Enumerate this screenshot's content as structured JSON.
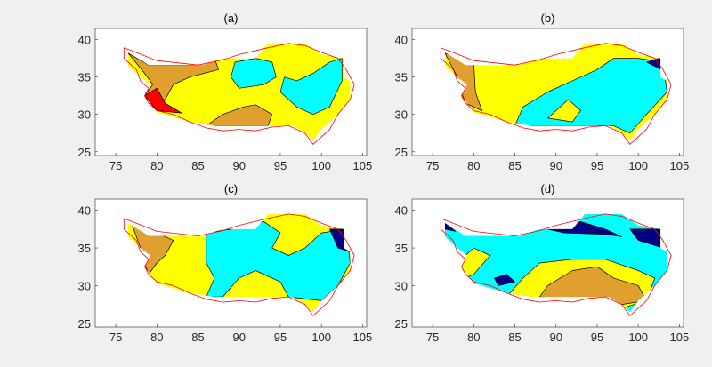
{
  "chart_data": [
    {
      "type": "contour-map",
      "title": "(a)",
      "xlim": [
        72.5,
        105.5
      ],
      "ylim": [
        24.5,
        41.5
      ],
      "xticks": [
        75,
        80,
        85,
        90,
        95,
        100,
        105
      ],
      "yticks": [
        25,
        30,
        35,
        40
      ],
      "base_color": "#ffff00",
      "regions": [
        {
          "color": "#e0a030",
          "points": [
            [
              76.5,
              38.2
            ],
            [
              79,
              36.6
            ],
            [
              85,
              36.6
            ],
            [
              87,
              37.5
            ],
            [
              87.5,
              36
            ],
            [
              84,
              35
            ],
            [
              82,
              34
            ],
            [
              81,
              32
            ],
            [
              80,
              30.5
            ],
            [
              78.5,
              32.5
            ],
            [
              79.5,
              34
            ],
            [
              78.5,
              35.5
            ]
          ]
        },
        {
          "color": "#e0a030",
          "points": [
            [
              86,
              28.5
            ],
            [
              88,
              30
            ],
            [
              90.5,
              31
            ],
            [
              92,
              31.3
            ],
            [
              94,
              30
            ],
            [
              93.5,
              28.5
            ]
          ]
        },
        {
          "color": "#ff0000",
          "points": [
            [
              78.5,
              32.5
            ],
            [
              80,
              33.5
            ],
            [
              81,
              31.5
            ],
            [
              83,
              30.2
            ],
            [
              80,
              30.5
            ]
          ]
        },
        {
          "color": "#00ffff",
          "points": [
            [
              89,
              35
            ],
            [
              89.5,
              37
            ],
            [
              92,
              37.5
            ],
            [
              94,
              37
            ],
            [
              94.5,
              35
            ],
            [
              93,
              34
            ],
            [
              90,
              33.5
            ]
          ]
        },
        {
          "color": "#00ffff",
          "points": [
            [
              95.5,
              35
            ],
            [
              97,
              34.5
            ],
            [
              99,
              35.5
            ],
            [
              101,
              37
            ],
            [
              102.5,
              37.5
            ],
            [
              102.5,
              34.5
            ],
            [
              101,
              31
            ],
            [
              99,
              30
            ],
            [
              97,
              31
            ],
            [
              95,
              33
            ]
          ]
        }
      ]
    },
    {
      "type": "contour-map",
      "title": "(b)",
      "xlim": [
        72.5,
        105.5
      ],
      "ylim": [
        24.5,
        41.5
      ],
      "xticks": [
        75,
        80,
        85,
        90,
        95,
        100,
        105
      ],
      "yticks": [
        25,
        30,
        35,
        40
      ],
      "base_color": "#ffff00",
      "regions": [
        {
          "color": "#e0a030",
          "points": [
            [
              76.5,
              38.2
            ],
            [
              80,
              37
            ],
            [
              80.2,
              33
            ],
            [
              81,
              30.5
            ],
            [
              79,
              31.5
            ],
            [
              78.5,
              33
            ],
            [
              78,
              35
            ]
          ]
        },
        {
          "color": "#00ffff",
          "points": [
            [
              85,
              28.5
            ],
            [
              86,
              31
            ],
            [
              89,
              33
            ],
            [
              91,
              34
            ],
            [
              93,
              35
            ],
            [
              95,
              36
            ],
            [
              97,
              37.5
            ],
            [
              100,
              37.5
            ],
            [
              103,
              37
            ],
            [
              103.5,
              33
            ],
            [
              101,
              30
            ],
            [
              99,
              27.5
            ],
            [
              97,
              28.5
            ],
            [
              92,
              28.5
            ],
            [
              88,
              28.5
            ]
          ]
        },
        {
          "color": "#ffff00",
          "points": [
            [
              89,
              29.5
            ],
            [
              91.5,
              32
            ],
            [
              93,
              30.5
            ],
            [
              92,
              29
            ]
          ]
        },
        {
          "color": "#000080",
          "points": [
            [
              101,
              37
            ],
            [
              102.8,
              37.6
            ],
            [
              102.8,
              36
            ]
          ]
        }
      ]
    },
    {
      "type": "contour-map",
      "title": "(c)",
      "xlim": [
        72.5,
        105.5
      ],
      "ylim": [
        24.5,
        41.5
      ],
      "xticks": [
        75,
        80,
        85,
        90,
        95,
        100,
        105
      ],
      "yticks": [
        25,
        30,
        35,
        40
      ],
      "base_color": "#ffff00",
      "regions": [
        {
          "color": "#e0a030",
          "points": [
            [
              77,
              38
            ],
            [
              80,
              37
            ],
            [
              82,
              36
            ],
            [
              81,
              34
            ],
            [
              80,
              33
            ],
            [
              79,
              31.5
            ],
            [
              78.5,
              33
            ],
            [
              78,
              35
            ]
          ]
        },
        {
          "color": "#00ffff",
          "points": [
            [
              86,
              37
            ],
            [
              89,
              37.5
            ],
            [
              93,
              38.5
            ],
            [
              95,
              37
            ],
            [
              94,
              35
            ],
            [
              96,
              34
            ],
            [
              98,
              35
            ],
            [
              100,
              37
            ],
            [
              103,
              37.5
            ],
            [
              103.5,
              33
            ],
            [
              102,
              30
            ],
            [
              100,
              28
            ],
            [
              96,
              28.5
            ],
            [
              95,
              30.5
            ],
            [
              92,
              32
            ],
            [
              90,
              31
            ],
            [
              88,
              28.5
            ],
            [
              86,
              28.5
            ],
            [
              87,
              31
            ],
            [
              86,
              33
            ],
            [
              86,
              36
            ]
          ]
        },
        {
          "color": "#000080",
          "points": [
            [
              101,
              37.5
            ],
            [
              103.5,
              37.5
            ],
            [
              103.5,
              34.5
            ],
            [
              102,
              35
            ]
          ]
        }
      ]
    },
    {
      "type": "contour-map",
      "title": "(d)",
      "xlim": [
        72.5,
        105.5
      ],
      "ylim": [
        24.5,
        41.5
      ],
      "xticks": [
        75,
        80,
        85,
        90,
        95,
        100,
        105
      ],
      "yticks": [
        25,
        30,
        35,
        40
      ],
      "base_color": "#00ffff",
      "regions": [
        {
          "color": "#ffff00",
          "points": [
            [
              84,
              28.5
            ],
            [
              86,
              31
            ],
            [
              88,
              33
            ],
            [
              92,
              33.5
            ],
            [
              96,
              33.5
            ],
            [
              100,
              32
            ],
            [
              102,
              31
            ],
            [
              101,
              28
            ],
            [
              98,
              27
            ],
            [
              92,
              27.5
            ],
            [
              86,
              28.5
            ]
          ]
        },
        {
          "color": "#e0a030",
          "points": [
            [
              88,
              28.5
            ],
            [
              89,
              30
            ],
            [
              92,
              32
            ],
            [
              95,
              32.5
            ],
            [
              97,
              31
            ],
            [
              100,
              30
            ],
            [
              101,
              28
            ],
            [
              98,
              27.5
            ],
            [
              94,
              28
            ]
          ]
        },
        {
          "color": "#ffff00",
          "points": [
            [
              78,
              33
            ],
            [
              80,
              35
            ],
            [
              82,
              34
            ],
            [
              80,
              31.5
            ],
            [
              79,
              31
            ]
          ]
        },
        {
          "color": "#000080",
          "points": [
            [
              89,
              37.5
            ],
            [
              93,
              38.5
            ],
            [
              96,
              37.5
            ],
            [
              98,
              36.5
            ],
            [
              96,
              36.8
            ],
            [
              91,
              37
            ]
          ]
        },
        {
          "color": "#000080",
          "points": [
            [
              99,
              37.5
            ],
            [
              103,
              37.5
            ],
            [
              103,
              35
            ],
            [
              100,
              36
            ]
          ]
        },
        {
          "color": "#000080",
          "points": [
            [
              76.5,
              38.3
            ],
            [
              77.8,
              37.2
            ],
            [
              76.5,
              37.5
            ]
          ]
        },
        {
          "color": "#000080",
          "points": [
            [
              82.5,
              31
            ],
            [
              84,
              31.5
            ],
            [
              85,
              30.5
            ],
            [
              83,
              30
            ]
          ]
        }
      ]
    }
  ],
  "boundary": [
    [
      76,
      38.9
    ],
    [
      77,
      38.5
    ],
    [
      80,
      37.2
    ],
    [
      85,
      36.6
    ],
    [
      88,
      37.3
    ],
    [
      90,
      38
    ],
    [
      93,
      38.8
    ],
    [
      96,
      39.5
    ],
    [
      98,
      39.2
    ],
    [
      100,
      38.3
    ],
    [
      102,
      37.5
    ],
    [
      103,
      36
    ],
    [
      104,
      34
    ],
    [
      103.5,
      32
    ],
    [
      102,
      30
    ],
    [
      101,
      28
    ],
    [
      99,
      26
    ],
    [
      98,
      27.5
    ],
    [
      96,
      28.5
    ],
    [
      94,
      28.3
    ],
    [
      92,
      27.8
    ],
    [
      90,
      28
    ],
    [
      88,
      27.8
    ],
    [
      86,
      28.2
    ],
    [
      84,
      29
    ],
    [
      82,
      30
    ],
    [
      80,
      30.5
    ],
    [
      79,
      31.5
    ],
    [
      78.5,
      32.5
    ],
    [
      79,
      33.5
    ],
    [
      78,
      34.5
    ],
    [
      77.5,
      36
    ],
    [
      76,
      37.5
    ]
  ],
  "data_domain": [
    [
      76.5,
      38.3
    ],
    [
      79,
      36.6
    ],
    [
      85.5,
      36.6
    ],
    [
      88,
      37.5
    ],
    [
      92,
      37.5
    ],
    [
      93.5,
      39.5
    ],
    [
      98,
      39.5
    ],
    [
      100,
      38
    ],
    [
      102.7,
      37.5
    ],
    [
      102.7,
      35
    ],
    [
      103.5,
      34.5
    ],
    [
      103.5,
      32
    ],
    [
      102,
      30
    ],
    [
      100,
      28
    ],
    [
      99,
      26.5
    ],
    [
      98,
      27.5
    ],
    [
      96.5,
      28.5
    ],
    [
      87,
      28.5
    ],
    [
      84,
      29
    ],
    [
      80,
      30.3
    ],
    [
      78.5,
      32.5
    ],
    [
      79.2,
      34
    ],
    [
      78,
      35
    ],
    [
      76.5,
      36.5
    ]
  ],
  "colors": {
    "boundary": "#ff0000",
    "contour_line": "#000000",
    "axes_bg": "#ffffff",
    "figure_bg": "#f0f0f0"
  }
}
